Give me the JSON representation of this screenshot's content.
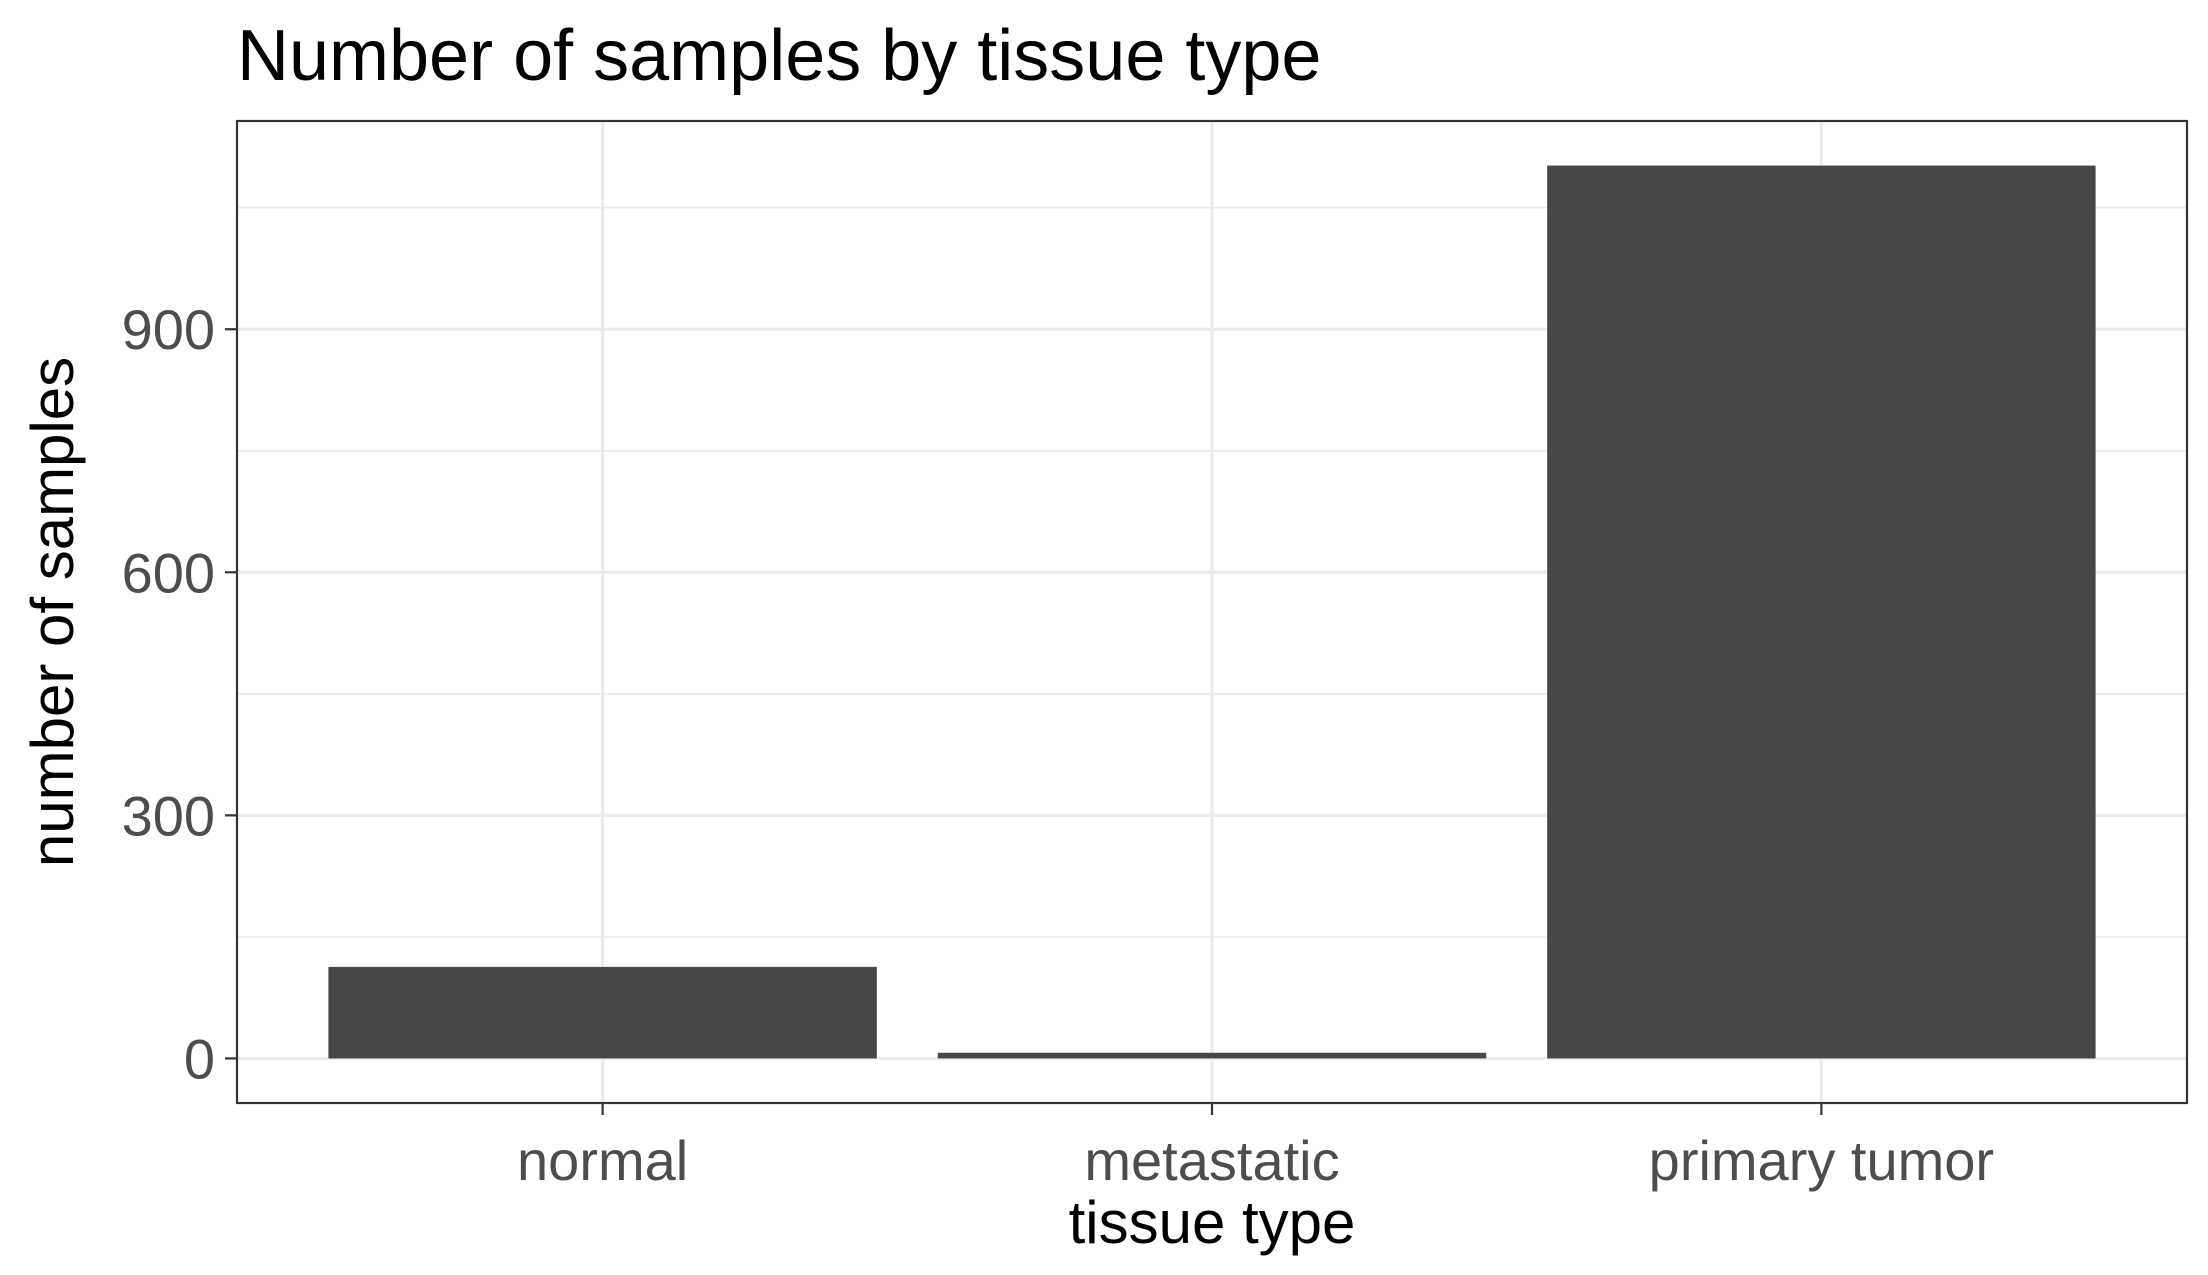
{
  "chart_data": {
    "type": "bar",
    "title": "Number of samples by tissue type",
    "xlabel": "tissue type",
    "ylabel": "number of samples",
    "categories": [
      "normal",
      "metastatic",
      "primary tumor"
    ],
    "values": [
      113,
      7,
      1102
    ],
    "ylim": [
      -55,
      1157
    ],
    "yticks": [
      0,
      300,
      600,
      900
    ],
    "yticks_minor": [
      150,
      450,
      750,
      1050
    ],
    "grid": true,
    "bar_color": "#474747",
    "legend": "none"
  }
}
